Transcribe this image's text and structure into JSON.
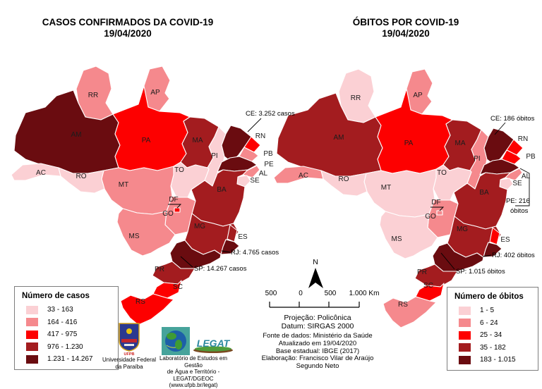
{
  "titles": {
    "left_line1": "CASOS CONFIRMADOS DA COVID-19",
    "left_line2": "19/04/2020",
    "right_line1": "ÓBITOS POR COVID-19",
    "right_line2": "19/04/2020"
  },
  "class_colors": [
    "#fbd0d4",
    "#f5898d",
    "#fd0000",
    "#a31c1f",
    "#6a0c10"
  ],
  "legend_cases": {
    "title": "Número de casos",
    "items": [
      "33 - 163",
      "164 - 416",
      "417 - 975",
      "976 - 1.230",
      "1.231 - 14.267"
    ]
  },
  "legend_deaths": {
    "title": "Número de óbitos",
    "items": [
      "1 - 5",
      "6 - 24",
      "25 - 34",
      "35 - 182",
      "183 - 1.015"
    ]
  },
  "maps": {
    "cases": {
      "labels": [
        "RR",
        "AP",
        "AM",
        "PA",
        "MA",
        "PI",
        "RN",
        "PB",
        "PE",
        "AL",
        "SE",
        "BA",
        "TO",
        "MT",
        "RO",
        "AC",
        "GO",
        "DF",
        "MS",
        "MG",
        "ES",
        "PR",
        "SC",
        "RS"
      ],
      "state_classes": {
        "AC": 1,
        "RO": 1,
        "TO": 1,
        "PI": 1,
        "SE": 1,
        "RR": 2,
        "AP": 2,
        "MT": 2,
        "GO": 2,
        "MS": 2,
        "PB": 2,
        "AL": 2,
        "PA": 3,
        "RN": 3,
        "DF": 3,
        "SC": 3,
        "RS": 3,
        "MA": 4,
        "BA": 4,
        "MG": 4,
        "ES": 4,
        "PR": 4,
        "AM": 5,
        "CE": 5,
        "PE": 5,
        "RJ": 5,
        "SP": 5
      },
      "annotations": [
        {
          "id": "CE",
          "lines": [
            "CE: 3.252 casos"
          ]
        },
        {
          "id": "RJ",
          "lines": [
            "RJ: 4.765 casos"
          ]
        },
        {
          "id": "SP",
          "lines": [
            "SP: 14.267 casos"
          ]
        }
      ]
    },
    "deaths": {
      "labels": [
        "RR",
        "AP",
        "AM",
        "PA",
        "MA",
        "PI",
        "RN",
        "PB",
        "AL",
        "SE",
        "BA",
        "TO",
        "MT",
        "RO",
        "AC",
        "GO",
        "DF",
        "MS",
        "MG",
        "ES",
        "PR",
        "SC",
        "RS"
      ],
      "state_classes": {
        "RR": 1,
        "RO": 1,
        "TO": 1,
        "MT": 1,
        "MS": 1,
        "SE": 1,
        "AC": 2,
        "AP": 2,
        "PI": 2,
        "GO": 2,
        "DF": 2,
        "AL": 2,
        "RS": 2,
        "PA": 3,
        "RN": 3,
        "PB": 3,
        "ES": 3,
        "SC": 3,
        "AM": 4,
        "MA": 4,
        "BA": 4,
        "MG": 4,
        "PR": 4,
        "CE": 5,
        "PE": 5,
        "RJ": 5,
        "SP": 5
      },
      "annotations": [
        {
          "id": "CE",
          "lines": [
            "CE: 186 óbitos"
          ]
        },
        {
          "id": "PE",
          "lines": [
            "PE: 216",
            "óbitos"
          ]
        },
        {
          "id": "RJ",
          "lines": [
            "RJ: 402 óbitos"
          ]
        },
        {
          "id": "SP",
          "lines": [
            "SP: 1.015 óbitos"
          ]
        }
      ]
    }
  },
  "compass": {
    "label": "N"
  },
  "scale_bar": {
    "labels": [
      "500",
      "0",
      "500",
      "1.000 Km"
    ]
  },
  "credits": {
    "projection": "Projeção: Policônica",
    "datum": "Datum: SIRGAS 2000",
    "source": "Fonte de dados: Ministério da Saúde",
    "updated": "Atualizado em 19/04/2020",
    "base": "Base estadual: IBGE (2017)",
    "elaboration": "Elaboração: Francisco Vilar de Araújo",
    "elaboration2": "Segundo Neto"
  },
  "logos": {
    "ufpb_text": "UFPB",
    "ufpb_caption1": "Universidade Federal",
    "ufpb_caption2": "da Paraíba",
    "legat_logo_text": "LEGAT",
    "legat_caption1": "Laboratório de Estudos em Gestão",
    "legat_caption2": "de Água e Território -",
    "legat_caption3": "LEGAT/DGEOC (www.ufpb.br/legat)"
  }
}
